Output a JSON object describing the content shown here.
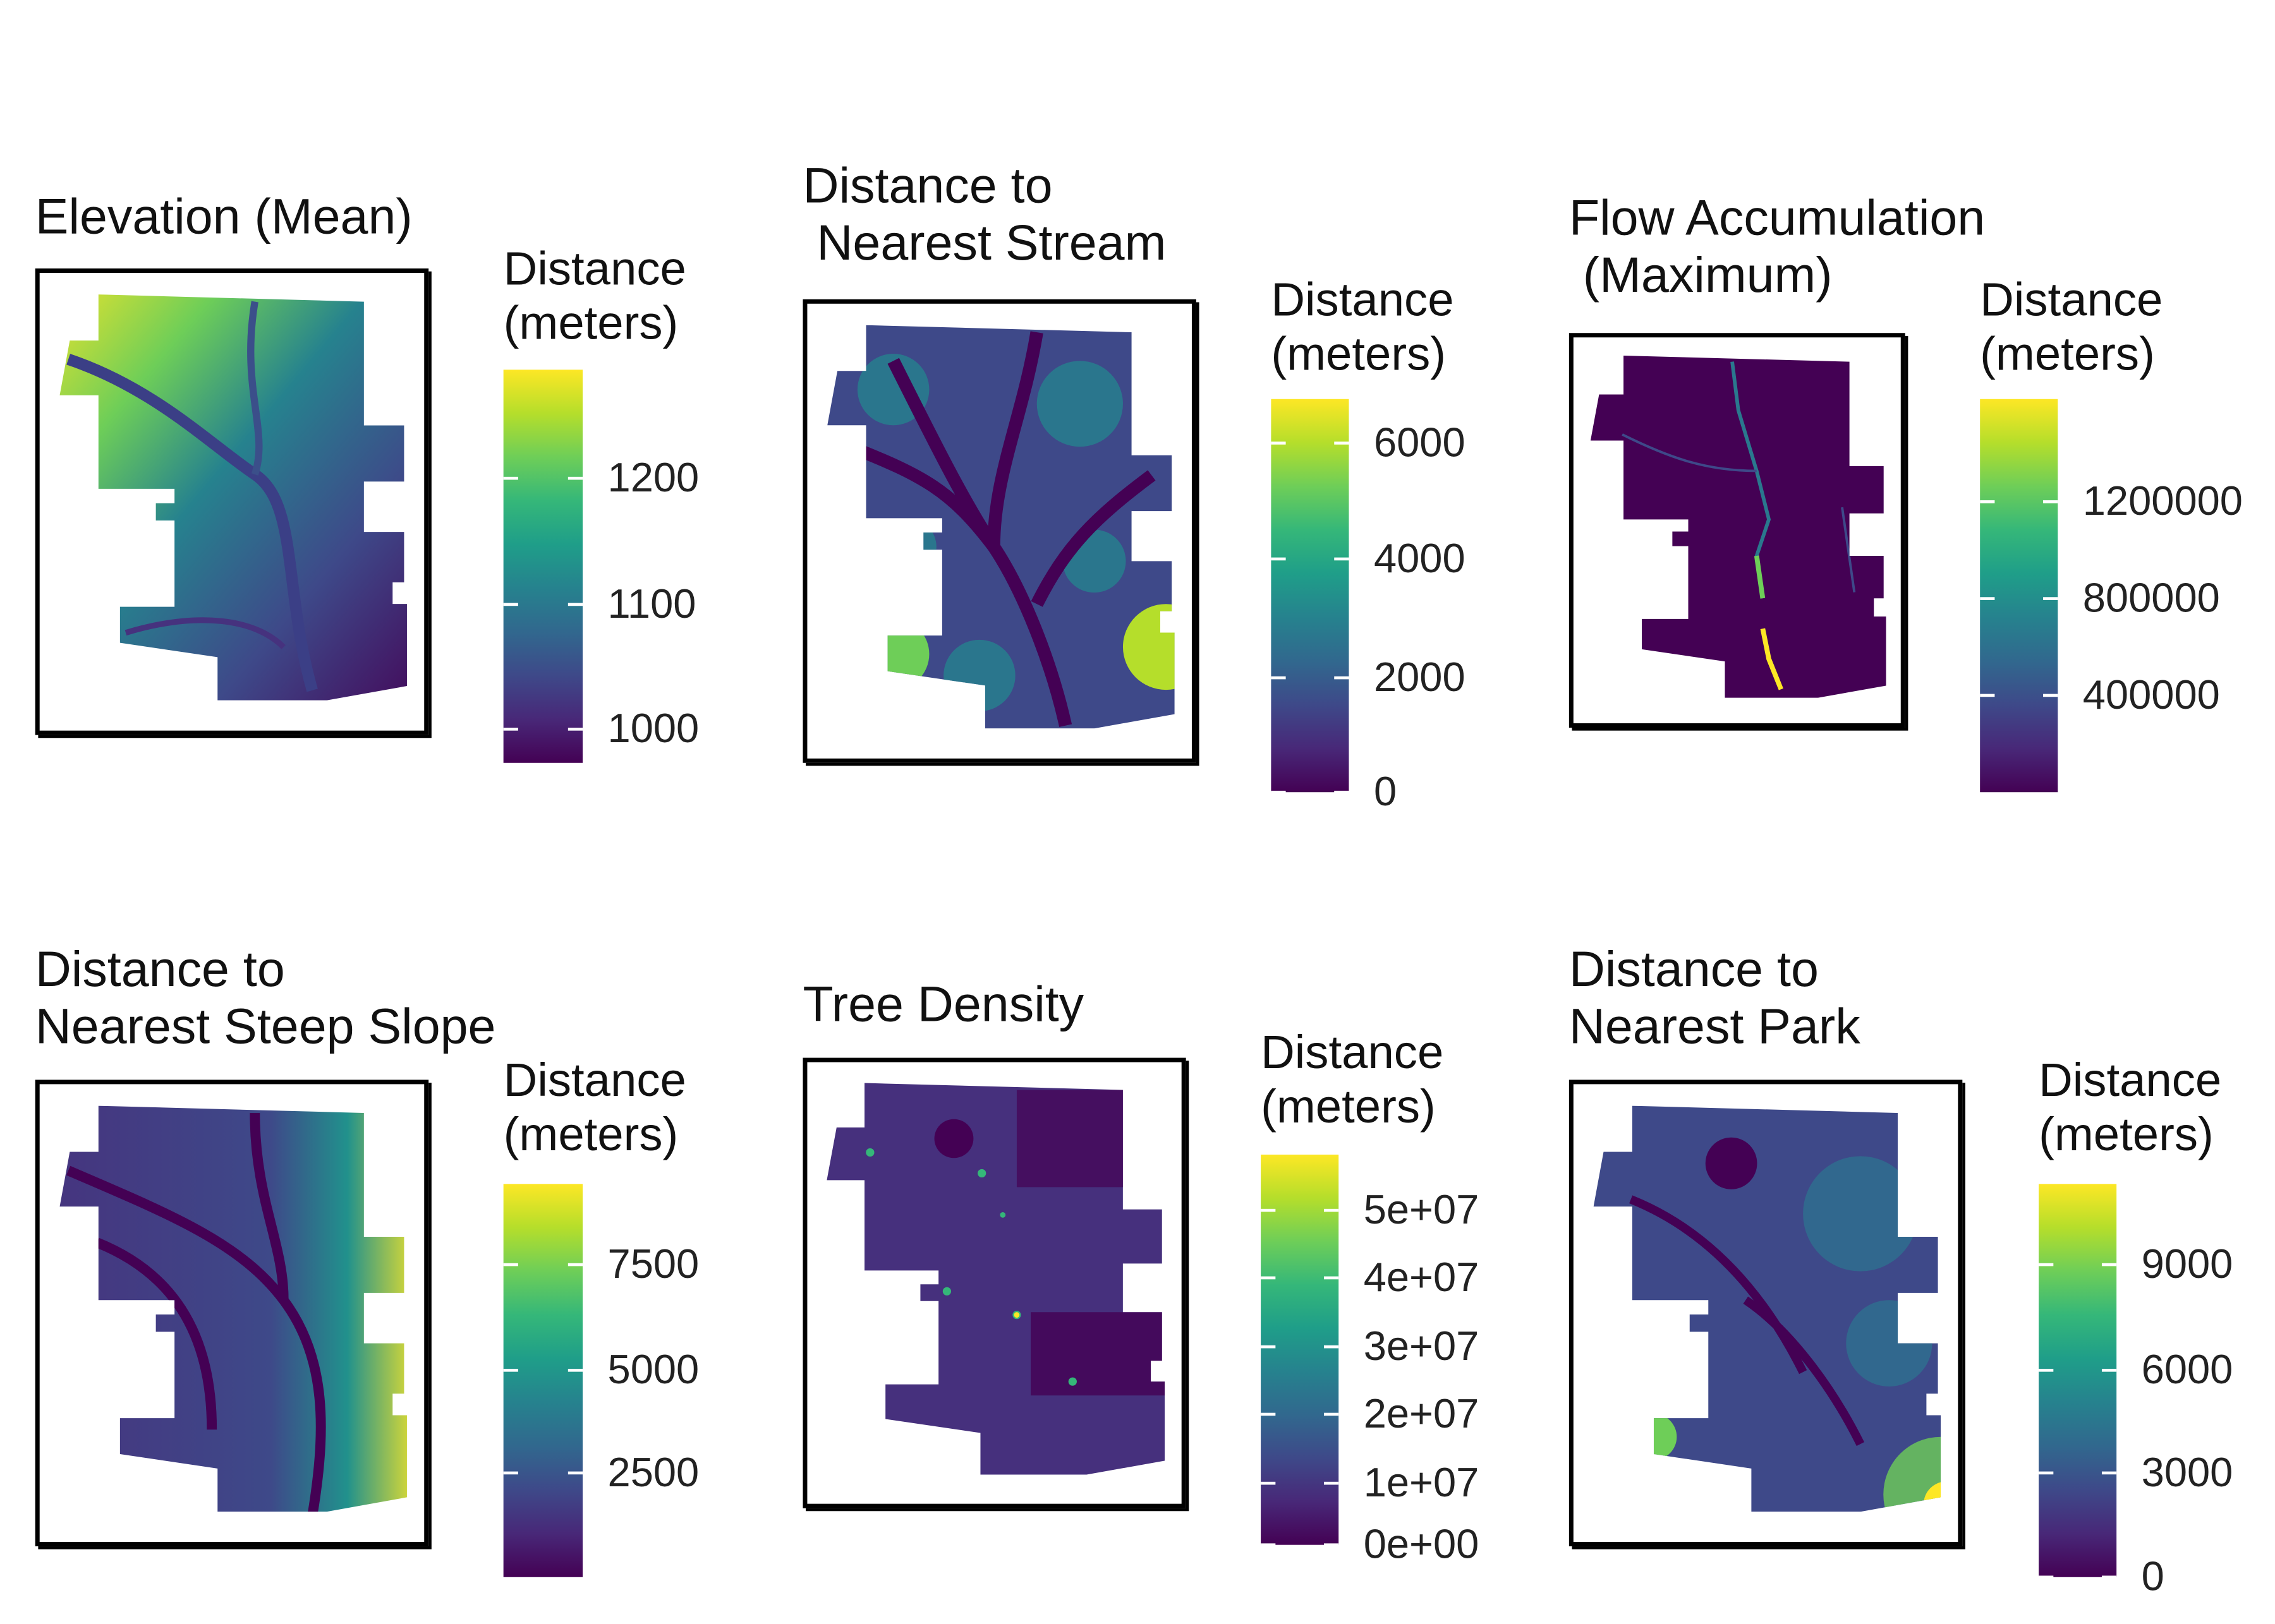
{
  "panels": [
    {
      "title": "Elevation (Mean)",
      "legend_title": "Distance\n(meters)",
      "ticks": [
        "1200",
        "1100",
        "1000"
      ]
    },
    {
      "title": "Distance to\n Nearest Stream",
      "legend_title": "Distance\n(meters)",
      "ticks": [
        "6000",
        "4000",
        "2000",
        "0"
      ]
    },
    {
      "title": "Flow Accumulation\n (Maximum)",
      "legend_title": "Distance\n(meters)",
      "ticks": [
        "1200000",
        "800000",
        "400000"
      ]
    },
    {
      "title": "Distance to\nNearest Steep Slope",
      "legend_title": "Distance\n(meters)",
      "ticks": [
        "7500",
        "5000",
        "2500"
      ]
    },
    {
      "title": "Tree Density",
      "legend_title": "Distance\n(meters)",
      "ticks": [
        "5e+07",
        "4e+07",
        "3e+07",
        "2e+07",
        "1e+07",
        "0e+00"
      ]
    },
    {
      "title": "Distance to\nNearest Park",
      "legend_title": "Distance\n(meters)",
      "ticks": [
        "9000",
        "6000",
        "3000",
        "0"
      ]
    }
  ],
  "colors": {
    "low": "#440154",
    "mid": "#21918c",
    "high": "#fde725"
  }
}
